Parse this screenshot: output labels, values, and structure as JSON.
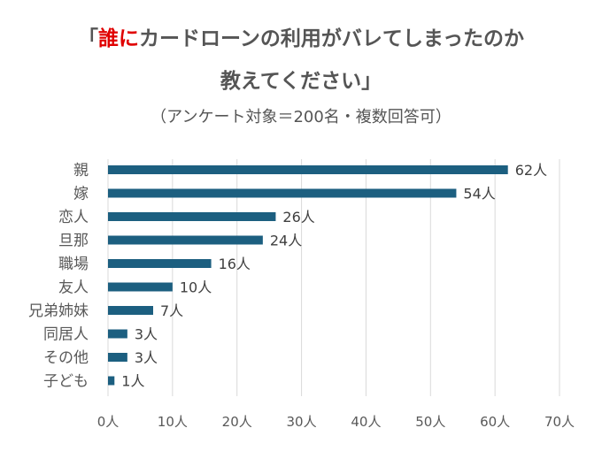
{
  "title": {
    "open_bracket": "「",
    "highlight": "誰に",
    "rest_line1": "カードローンの利用がバレてしまったのか",
    "line2": "教えてください」"
  },
  "subtitle": "（アンケート対象＝200名・複数回答可）",
  "chart_data": {
    "type": "bar",
    "orientation": "horizontal",
    "categories": [
      "親",
      "嫁",
      "恋人",
      "旦那",
      "職場",
      "友人",
      "兄弟姉妹",
      "同居人",
      "その他",
      "子ども"
    ],
    "values": [
      62,
      54,
      26,
      24,
      16,
      10,
      7,
      3,
      3,
      1
    ],
    "value_labels": [
      "62人",
      "54人",
      "26人",
      "24人",
      "16人",
      "10人",
      "7人",
      "3人",
      "3人",
      "1人"
    ],
    "xlim": [
      0,
      70
    ],
    "x_ticks": [
      0,
      10,
      20,
      30,
      40,
      50,
      60,
      70
    ],
    "x_tick_labels": [
      "0人",
      "10人",
      "20人",
      "30人",
      "40人",
      "50人",
      "60人",
      "70人"
    ],
    "bar_color": "#1c5f80",
    "gridlines": "vertical"
  }
}
